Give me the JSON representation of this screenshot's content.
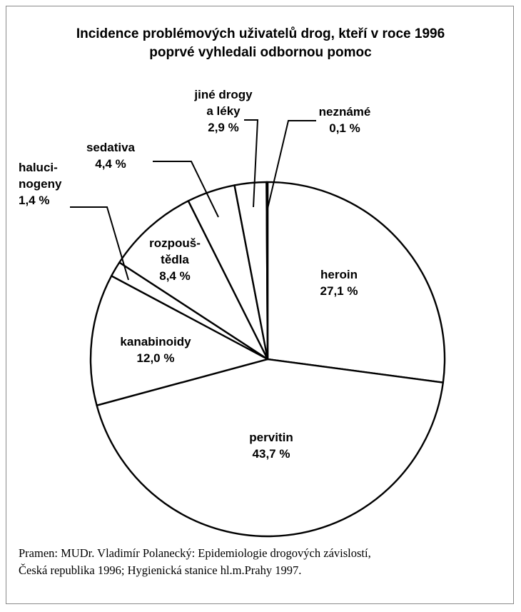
{
  "title": {
    "line1": "Incidence problémových uživatelů drog, kteří v roce 1996",
    "line2": "poprvé vyhledali odbornou pomoc"
  },
  "chart_data": {
    "type": "pie",
    "title": "Incidence problémových uživatelů drog, kteří v roce 1996 poprvé vyhledali odbornou pomoc",
    "slices": [
      {
        "name": "heroin",
        "label_lines": [
          "heroin"
        ],
        "value": 27.1,
        "value_label": "27,1 %"
      },
      {
        "name": "pervitin",
        "label_lines": [
          "pervitin"
        ],
        "value": 43.7,
        "value_label": "43,7 %"
      },
      {
        "name": "kanabinoidy",
        "label_lines": [
          "kanabinoidy"
        ],
        "value": 12.0,
        "value_label": "12,0 %"
      },
      {
        "name": "halucinogeny",
        "label_lines": [
          "haluci-",
          "nogeny"
        ],
        "value": 1.4,
        "value_label": "1,4 %"
      },
      {
        "name": "rozpouštědla",
        "label_lines": [
          "rozpouš-",
          "tědla"
        ],
        "value": 8.4,
        "value_label": "8,4 %"
      },
      {
        "name": "sedativa",
        "label_lines": [
          "sedativa"
        ],
        "value": 4.4,
        "value_label": "4,4 %"
      },
      {
        "name": "jiné drogy a léky",
        "label_lines": [
          "jiné drogy",
          "a léky"
        ],
        "value": 2.9,
        "value_label": "2,9 %"
      },
      {
        "name": "neznámé",
        "label_lines": [
          "neznámé"
        ],
        "value": 0.1,
        "value_label": "0,1 %"
      }
    ]
  },
  "source": {
    "line1": "Pramen: MUDr. Vladimír Polanecký: Epidemiologie drogových závislostí,",
    "line2": "Česká republika 1996; Hygienická stanice hl.m.Prahy 1997."
  }
}
